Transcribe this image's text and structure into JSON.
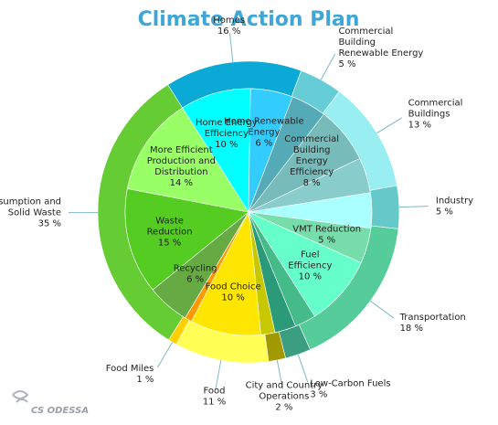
{
  "chart_data": {
    "type": "pie",
    "title": "Climate Action Plan",
    "outer": [
      {
        "name": "Homes",
        "pct_label": "16 %",
        "value": 16,
        "color": "#0aa9d6"
      },
      {
        "name": "Commercial Building Renewable Energy",
        "pct_label": "5 %",
        "value": 5,
        "color": "#66ccd6"
      },
      {
        "name": "Commercial Buildings",
        "pct_label": "13 %",
        "value": 13,
        "color": "#99eef2"
      },
      {
        "name": "Industry",
        "pct_label": "5 %",
        "value": 5,
        "color": "#66c9c9"
      },
      {
        "name": "Transportation",
        "pct_label": "18 %",
        "value": 18,
        "color": "#55cc99"
      },
      {
        "name": "Low-Carbon Fuels",
        "pct_label": "3 %",
        "value": 3,
        "color": "#3b9e80"
      },
      {
        "name": "City and Country Operations",
        "pct_label": "2 %",
        "value": 2,
        "color": "#a09a00"
      },
      {
        "name": "Food",
        "pct_label": "11 %",
        "value": 11,
        "color": "#ffff55"
      },
      {
        "name": "Food Miles",
        "pct_label": "1 %",
        "value": 1,
        "color": "#ffd000"
      },
      {
        "name": "Consumption and Solid Waste",
        "pct_label": "35 %",
        "value": 35,
        "color": "#66cc33"
      }
    ],
    "inner": [
      {
        "name": "Home Energy Efficiency",
        "pct_label": "10 %",
        "value": 10,
        "color": "#00ffff"
      },
      {
        "name": "Home Renewable Energy",
        "pct_label": "6 %",
        "value": 6,
        "color": "#33ccff"
      },
      {
        "name": "Commercial Building Renewable Energy",
        "pct_label": "",
        "value": 5,
        "color": "#55aab8"
      },
      {
        "name": "Commercial Building Energy Efficiency",
        "pct_label": "8 %",
        "value": 8,
        "color": "#77bbbb"
      },
      {
        "name": "Commercial Building Energy",
        "pct_label": "",
        "value": 5,
        "color": "#88cccc"
      },
      {
        "name": "Industry",
        "pct_label": "",
        "value": 5,
        "color": "#aaffff"
      },
      {
        "name": "VMT Reduction",
        "pct_label": "5 %",
        "value": 5,
        "color": "#77ddaa"
      },
      {
        "name": "Fuel Efficiency",
        "pct_label": "10 %",
        "value": 10,
        "color": "#66ffcc"
      },
      {
        "name": "Transportation",
        "pct_label": "",
        "value": 3,
        "color": "#44bb88"
      },
      {
        "name": "Low-Carbon Fuels",
        "pct_label": "",
        "value": 3,
        "color": "#2a9a78"
      },
      {
        "name": "City and Country Operations",
        "pct_label": "",
        "value": 2,
        "color": "#c8c800"
      },
      {
        "name": "Food Choice",
        "pct_label": "10 %",
        "value": 10,
        "color": "#ffe600"
      },
      {
        "name": "Food Miles",
        "pct_label": "",
        "value": 1,
        "color": "#ff9900"
      },
      {
        "name": "Recycling",
        "pct_label": "6 %",
        "value": 6,
        "color": "#66aa44"
      },
      {
        "name": "Waste Reduction",
        "pct_label": "15 %",
        "value": 15,
        "color": "#55cc22"
      },
      {
        "name": "More Efficient Production and Distribution",
        "pct_label": "14 %",
        "value": 14,
        "color": "#99ff66"
      }
    ],
    "legend": "none",
    "watermark": "CS ODESSA"
  }
}
